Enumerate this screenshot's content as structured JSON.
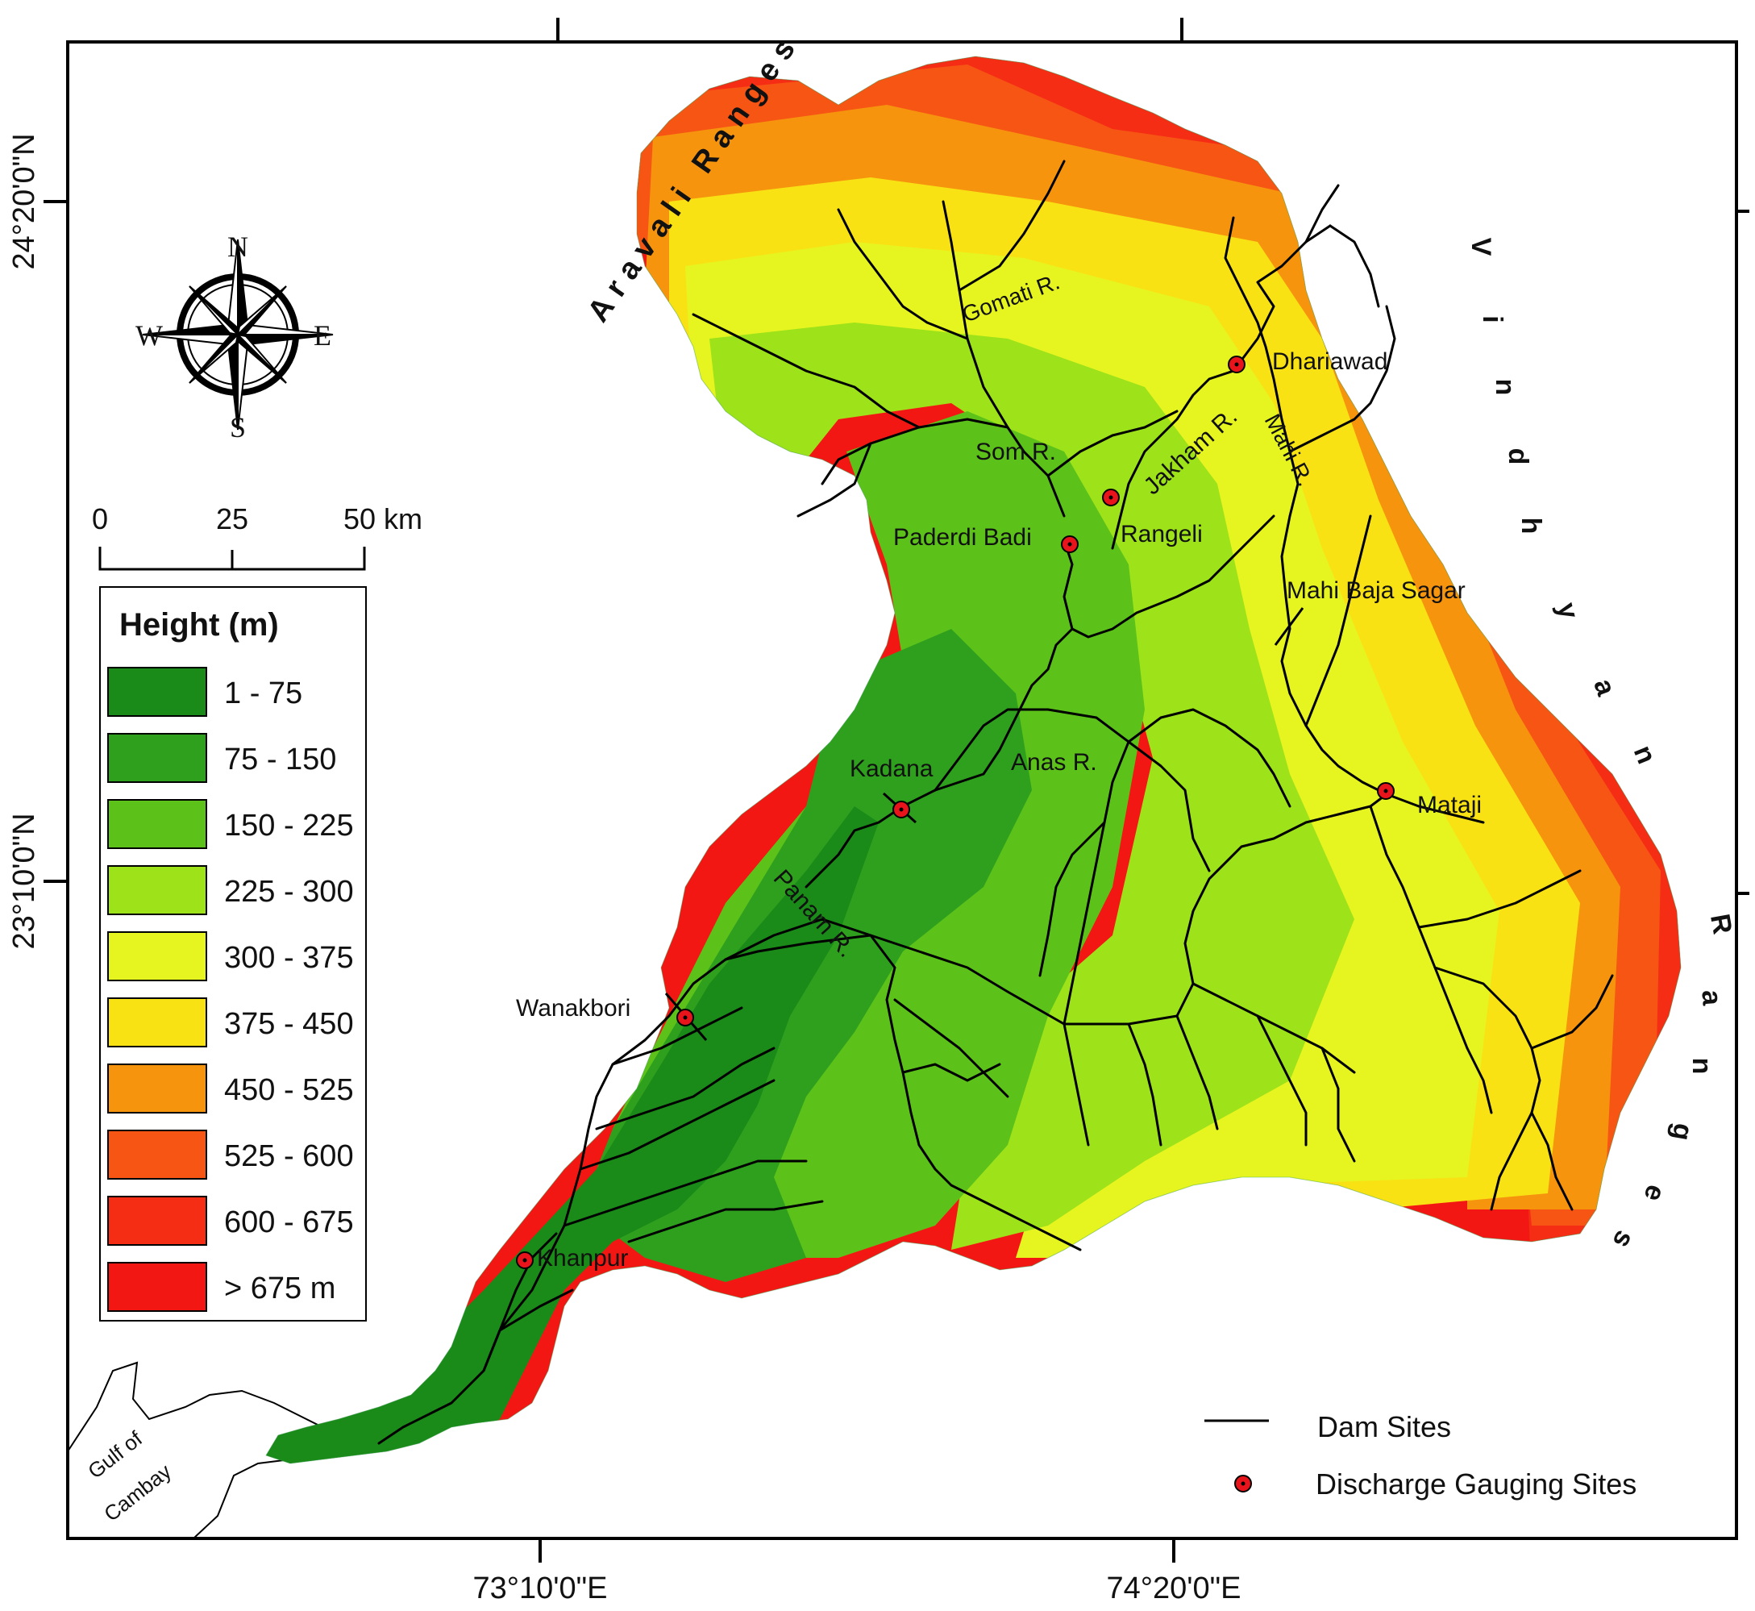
{
  "title": "",
  "coordinates": {
    "latitude": [
      "24°20'0\"N",
      "23°10'0\"N"
    ],
    "longitude": [
      "73°10'0\"E",
      "74°20'0\"E"
    ]
  },
  "compass": {
    "n": "N",
    "s": "S",
    "e": "E",
    "w": "W"
  },
  "scale_bar": {
    "ticks": [
      "0",
      "25",
      "50 km"
    ]
  },
  "legend": {
    "title": "Height (m)",
    "classes": [
      {
        "label": "1 - 75",
        "color": "#1a8a18"
      },
      {
        "label": "75 - 150",
        "color": "#2fa01e"
      },
      {
        "label": "150 - 225",
        "color": "#5cc21a"
      },
      {
        "label": "225 - 300",
        "color": "#9ee21a"
      },
      {
        "label": "300 - 375",
        "color": "#e6f51f"
      },
      {
        "label": "375 - 450",
        "color": "#f9e214"
      },
      {
        "label": "450 - 525",
        "color": "#f6940e"
      },
      {
        "label": "525 - 600",
        "color": "#f75514"
      },
      {
        "label": "600 - 675",
        "color": "#f52d15"
      },
      {
        "label": "> 675 m",
        "color": "#f31714"
      }
    ]
  },
  "symbols": {
    "dam_sites": "Dam Sites",
    "gauging_sites": "Discharge Gauging Sites",
    "gauge_color": "#e8141b"
  },
  "regions": {
    "aravali": "Aravali Ranges",
    "vindhyan": [
      "V",
      "i",
      "n",
      "d",
      "h",
      "y",
      "a",
      "n"
    ],
    "ranges": [
      "R",
      "a",
      "n",
      "g",
      "e",
      "s"
    ],
    "gulf_line1": "Gulf of",
    "gulf_line2": "Cambay"
  },
  "rivers": {
    "gomati": "Gomati R.",
    "som": "Som R.",
    "jakham": "Jakham R.",
    "mahi": "Mahi R.",
    "anas": "Anas R.",
    "panam": "Panam R."
  },
  "sites": {
    "dhariawad": "Dhariawad",
    "rangeli": "Rangeli",
    "paderdi_badi": "Paderdi Badi",
    "mahi_baja_sagar": "Mahi Baja Sagar",
    "kadana": "Kadana",
    "mataji": "Mataji",
    "wanakbori": "Wanakbori",
    "khanpur": "Khanpur"
  }
}
